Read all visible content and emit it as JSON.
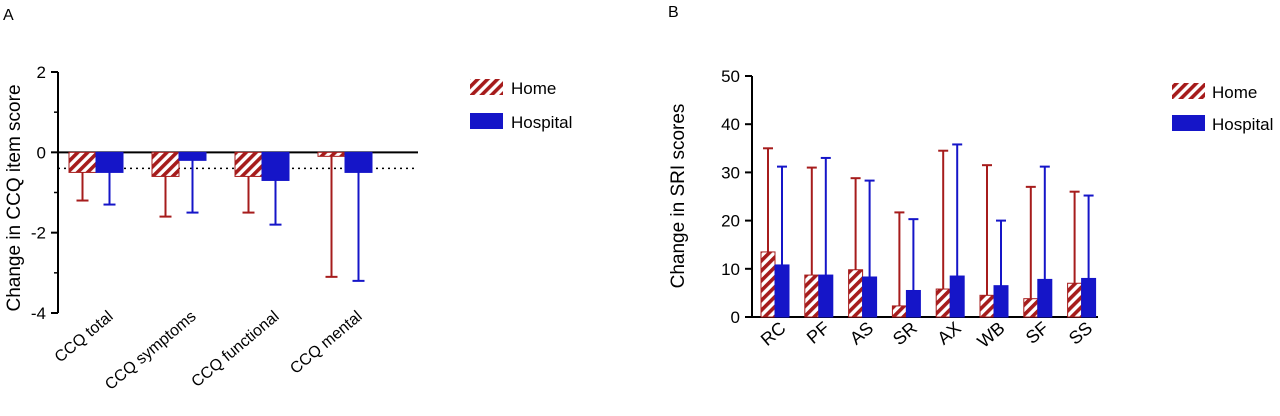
{
  "colors": {
    "home": "#a61c1c",
    "hospital": "#1515c8",
    "axis": "#000000"
  },
  "chart_data": [
    {
      "panel_label": "A",
      "type": "bar",
      "ylabel": "Change in CCQ item score",
      "ylim": [
        -4,
        2
      ],
      "yticks": [
        "2",
        "0",
        "-2",
        "-4"
      ],
      "categories": [
        "CCQ total",
        "CCQ symptoms",
        "CCQ functional",
        "CCQ mental"
      ],
      "reference_line": -0.4,
      "legend_position": "top-right",
      "series": [
        {
          "name": "Home",
          "pattern": "hatched",
          "values": [
            -0.5,
            -0.6,
            -0.6,
            -0.1
          ],
          "error_end": [
            -1.2,
            -1.6,
            -1.5,
            -3.1
          ]
        },
        {
          "name": "Hospital",
          "pattern": "solid",
          "values": [
            -0.5,
            -0.2,
            -0.7,
            -0.5
          ],
          "error_end": [
            -1.3,
            -1.5,
            -1.8,
            -3.2
          ]
        }
      ]
    },
    {
      "panel_label": "B",
      "type": "bar",
      "ylabel": "Change in SRI scores",
      "ylim": [
        0,
        50
      ],
      "yticks": [
        "50",
        "40",
        "30",
        "20",
        "10",
        "0"
      ],
      "categories": [
        "RC",
        "PF",
        "AS",
        "SR",
        "AX",
        "WB",
        "SF",
        "SS"
      ],
      "legend_position": "top-right",
      "series": [
        {
          "name": "Home",
          "pattern": "hatched",
          "values": [
            13.5,
            8.7,
            9.8,
            2.3,
            5.8,
            4.5,
            3.8,
            7.0
          ],
          "error_end": [
            35,
            31,
            28.8,
            21.7,
            34.5,
            31.5,
            27,
            26
          ]
        },
        {
          "name": "Hospital",
          "pattern": "solid",
          "values": [
            10.8,
            8.7,
            8.3,
            5.5,
            8.5,
            6.5,
            7.8,
            8.0
          ],
          "error_end": [
            31.2,
            33,
            28.3,
            20.3,
            35.8,
            20,
            31.2,
            25.2
          ]
        }
      ]
    }
  ]
}
